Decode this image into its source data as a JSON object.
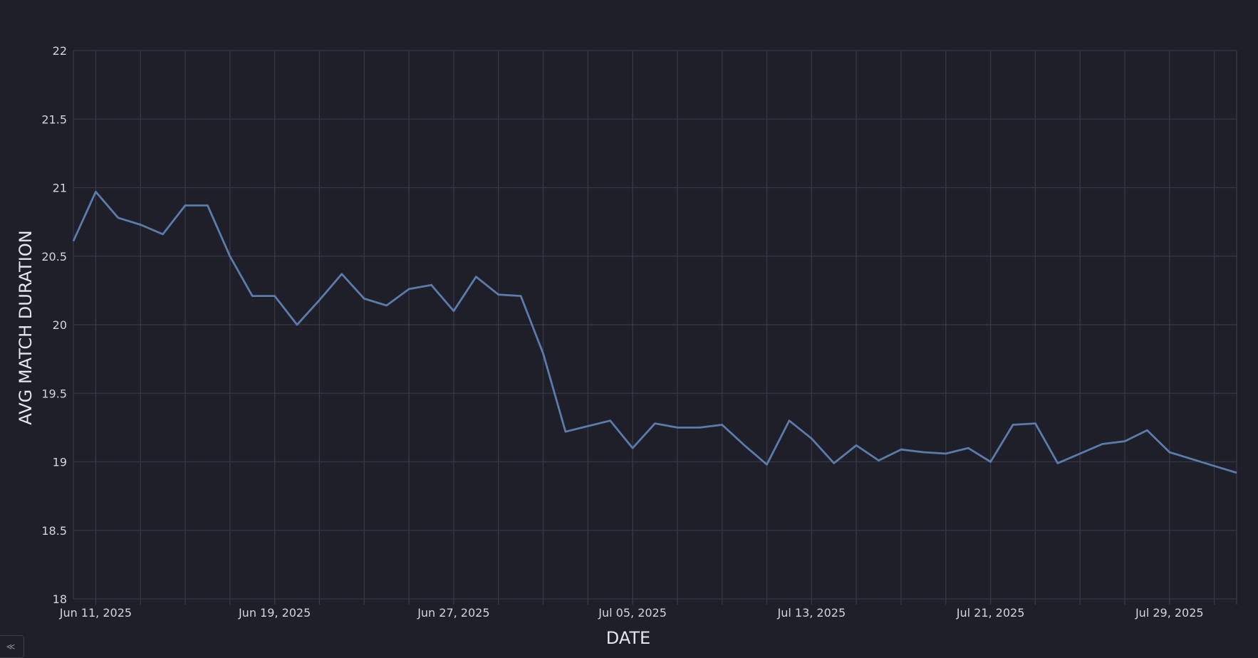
{
  "chart_data": {
    "type": "line",
    "xlabel": "DATE",
    "ylabel": "AVG MATCH DURATION",
    "ylim": [
      18,
      22
    ],
    "y_ticks": [
      "18",
      "18.5",
      "19",
      "19.5",
      "20",
      "20.5",
      "21",
      "21.5",
      "22"
    ],
    "x_range": [
      "2025-06-10",
      "2025-08-01"
    ],
    "x_ticks": [
      {
        "date": "2025-06-11",
        "label": "Jun 11, 2025"
      },
      {
        "date": "2025-06-19",
        "label": "Jun 19, 2025"
      },
      {
        "date": "2025-06-27",
        "label": "Jun 27, 2025"
      },
      {
        "date": "2025-07-05",
        "label": "Jul 05, 2025"
      },
      {
        "date": "2025-07-13",
        "label": "Jul 13, 2025"
      },
      {
        "date": "2025-07-21",
        "label": "Jul 21, 2025"
      },
      {
        "date": "2025-07-29",
        "label": "Jul 29, 2025"
      }
    ],
    "grid": true,
    "line_color": "#5b7bab",
    "x": [
      "2025-06-10",
      "2025-06-11",
      "2025-06-12",
      "2025-06-13",
      "2025-06-14",
      "2025-06-15",
      "2025-06-16",
      "2025-06-17",
      "2025-06-18",
      "2025-06-19",
      "2025-06-20",
      "2025-06-21",
      "2025-06-22",
      "2025-06-23",
      "2025-06-24",
      "2025-06-25",
      "2025-06-26",
      "2025-06-27",
      "2025-06-28",
      "2025-06-29",
      "2025-06-30",
      "2025-07-01",
      "2025-07-02",
      "2025-07-03",
      "2025-07-04",
      "2025-07-05",
      "2025-07-06",
      "2025-07-07",
      "2025-07-08",
      "2025-07-09",
      "2025-07-10",
      "2025-07-11",
      "2025-07-12",
      "2025-07-13",
      "2025-07-14",
      "2025-07-15",
      "2025-07-16",
      "2025-07-17",
      "2025-07-18",
      "2025-07-19",
      "2025-07-20",
      "2025-07-21",
      "2025-07-22",
      "2025-07-23",
      "2025-07-24",
      "2025-07-25",
      "2025-07-26",
      "2025-07-27",
      "2025-07-28",
      "2025-07-29",
      "2025-07-30",
      "2025-07-31",
      "2025-08-01"
    ],
    "y": [
      20.61,
      20.97,
      20.78,
      20.73,
      20.66,
      20.87,
      20.87,
      20.5,
      20.21,
      20.21,
      20.0,
      20.18,
      20.37,
      20.19,
      20.14,
      20.26,
      20.29,
      20.1,
      20.35,
      20.22,
      20.21,
      19.79,
      19.22,
      19.26,
      19.3,
      19.1,
      19.28,
      19.25,
      19.25,
      19.27,
      19.12,
      18.98,
      19.3,
      19.17,
      18.99,
      19.12,
      19.01,
      19.09,
      19.07,
      19.06,
      19.1,
      19.0,
      19.27,
      19.28,
      18.99,
      19.06,
      19.13,
      19.15,
      19.23,
      19.07,
      19.02,
      18.97,
      18.92
    ]
  }
}
